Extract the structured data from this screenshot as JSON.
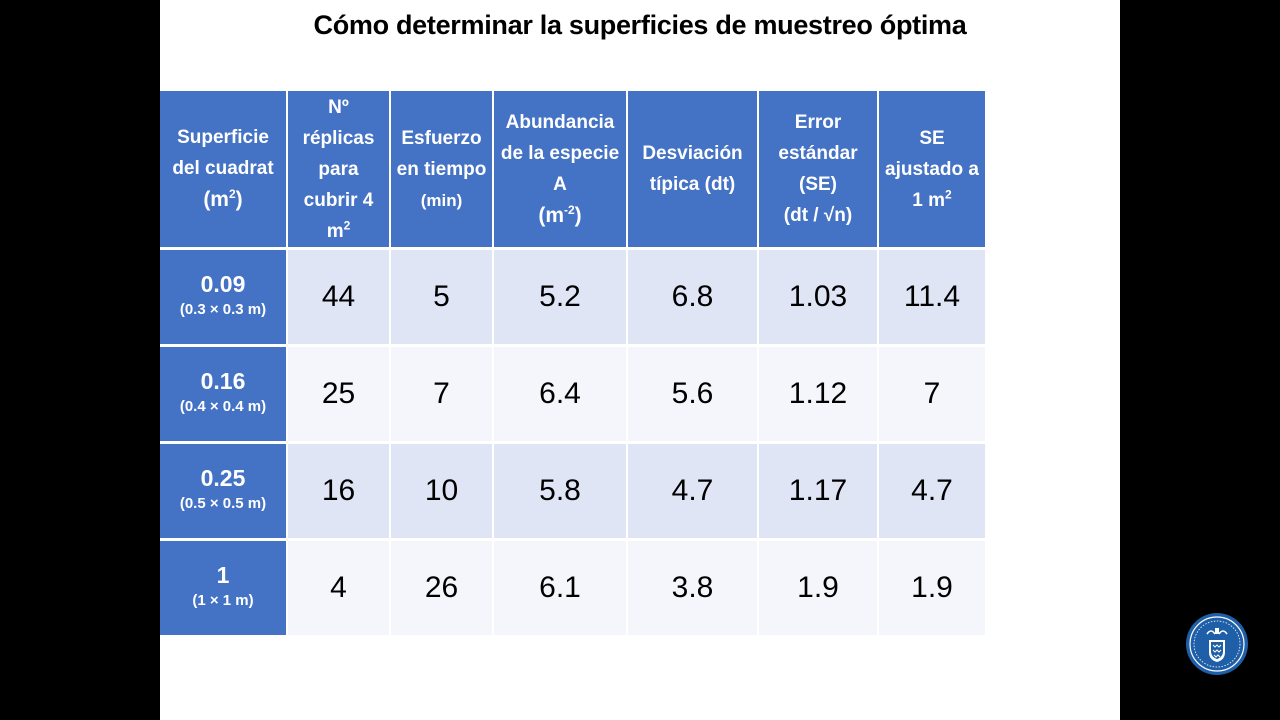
{
  "slide": {
    "title": "Cómo determinar la superficies de muestreo óptima"
  },
  "table": {
    "headers": {
      "col1": {
        "text": "Superficie del cuadrat",
        "unit_open": "(m",
        "unit_sup": "2",
        "unit_close": ")"
      },
      "col2": {
        "text": "Nº réplicas para cubrir 4 m",
        "sup": "2"
      },
      "col3": {
        "text": "Esfuerzo en tiempo",
        "unit": "(min)"
      },
      "col4": {
        "text": "Abundancia de la especie A",
        "unit_open": "(m",
        "unit_sup": "-2",
        "unit_close": ")"
      },
      "col5": {
        "text": "Desviación típica (dt)"
      },
      "col6": {
        "text": "Error estándar (SE)",
        "formula": "(dt / √n)"
      },
      "col7": {
        "text": "SE ajustado a 1 m",
        "sup": "2"
      }
    },
    "rows": [
      {
        "surface": "0.09",
        "dims": "(0.3 × 0.3 m)",
        "replicas": "44",
        "effort": "5",
        "abundance": "5.2",
        "sd": "6.8",
        "se": "1.03",
        "se_adj": "11.4"
      },
      {
        "surface": "0.16",
        "dims": "(0.4 × 0.4 m)",
        "replicas": "25",
        "effort": "7",
        "abundance": "6.4",
        "sd": "5.6",
        "se": "1.12",
        "se_adj": "7"
      },
      {
        "surface": "0.25",
        "dims": "(0.5 × 0.5 m)",
        "replicas": "16",
        "effort": "10",
        "abundance": "5.8",
        "sd": "4.7",
        "se": "1.17",
        "se_adj": "4.7"
      },
      {
        "surface": "1",
        "dims": "(1 × 1 m)",
        "replicas": "4",
        "effort": "26",
        "abundance": "6.1",
        "sd": "3.8",
        "se": "1.9",
        "se_adj": "1.9"
      }
    ]
  },
  "colors": {
    "header_blue": "#4472c4",
    "row_shade": "#dfe5f5",
    "row_plain": "#f4f6fb",
    "logo_blue": "#1f5fa8"
  },
  "logo": {
    "icon": "university-seal-icon"
  }
}
